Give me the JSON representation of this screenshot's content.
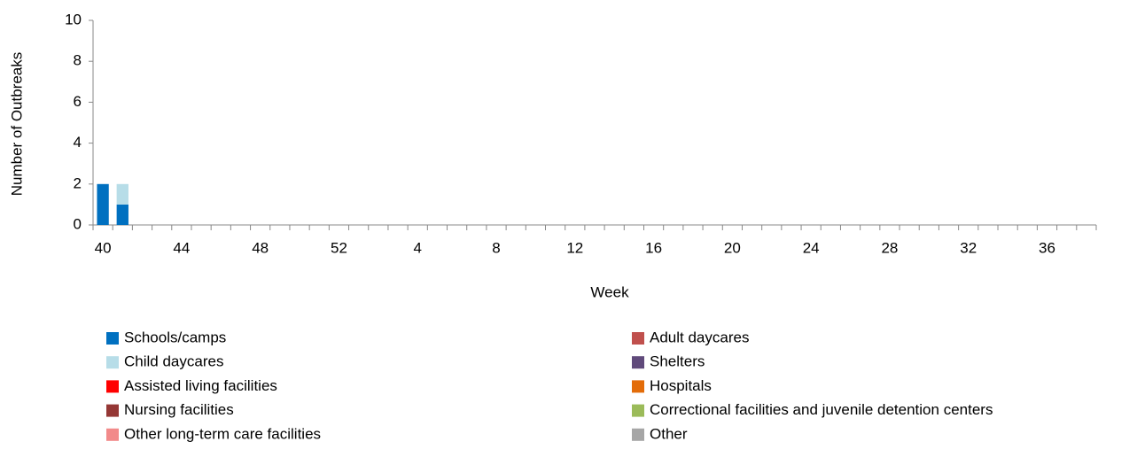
{
  "chart_data": {
    "type": "stacked_bar",
    "x_label": "Week",
    "y_label": "Number of Outbreaks",
    "categories": [
      "40",
      null,
      null,
      null,
      "44",
      null,
      null,
      null,
      "48",
      null,
      null,
      null,
      "52",
      null,
      null,
      null,
      "4",
      null,
      null,
      null,
      "8",
      null,
      null,
      null,
      "12",
      null,
      null,
      null,
      "16",
      null,
      null,
      null,
      "20",
      null,
      null,
      null,
      "24",
      null,
      null,
      null,
      "28",
      null,
      null,
      null,
      "32",
      null,
      null,
      null,
      "36",
      null,
      null
    ],
    "ylim": [
      0,
      10
    ],
    "yticks": [
      0,
      2,
      4,
      6,
      8,
      10
    ],
    "grid": false,
    "series": [
      {
        "name": "Schools/camps",
        "color": "#0070c0",
        "values": [
          2,
          1,
          0,
          0,
          0,
          0,
          0,
          0,
          0,
          0,
          0,
          0,
          0,
          0,
          0,
          0,
          0,
          0,
          0,
          0,
          0,
          0,
          0,
          0,
          0,
          0,
          0,
          0,
          0,
          0,
          0,
          0,
          0,
          0,
          0,
          0,
          0,
          0,
          0,
          0,
          0,
          0,
          0,
          0,
          0,
          0,
          0,
          0,
          0,
          0,
          0
        ]
      },
      {
        "name": "Child daycares",
        "color": "#b7dde8",
        "values": [
          0,
          1,
          0,
          0,
          0,
          0,
          0,
          0,
          0,
          0,
          0,
          0,
          0,
          0,
          0,
          0,
          0,
          0,
          0,
          0,
          0,
          0,
          0,
          0,
          0,
          0,
          0,
          0,
          0,
          0,
          0,
          0,
          0,
          0,
          0,
          0,
          0,
          0,
          0,
          0,
          0,
          0,
          0,
          0,
          0,
          0,
          0,
          0,
          0,
          0,
          0
        ]
      },
      {
        "name": "Assisted living facilities",
        "color": "#ff0000",
        "values": [
          0,
          0,
          0,
          0,
          0,
          0,
          0,
          0,
          0,
          0,
          0,
          0,
          0,
          0,
          0,
          0,
          0,
          0,
          0,
          0,
          0,
          0,
          0,
          0,
          0,
          0,
          0,
          0,
          0,
          0,
          0,
          0,
          0,
          0,
          0,
          0,
          0,
          0,
          0,
          0,
          0,
          0,
          0,
          0,
          0,
          0,
          0,
          0,
          0,
          0,
          0
        ]
      },
      {
        "name": "Nursing facilities",
        "color": "#953735",
        "values": [
          0,
          0,
          0,
          0,
          0,
          0,
          0,
          0,
          0,
          0,
          0,
          0,
          0,
          0,
          0,
          0,
          0,
          0,
          0,
          0,
          0,
          0,
          0,
          0,
          0,
          0,
          0,
          0,
          0,
          0,
          0,
          0,
          0,
          0,
          0,
          0,
          0,
          0,
          0,
          0,
          0,
          0,
          0,
          0,
          0,
          0,
          0,
          0,
          0,
          0,
          0
        ]
      },
      {
        "name": "Other long-term care facilities",
        "color": "#f28a8a",
        "values": [
          0,
          0,
          0,
          0,
          0,
          0,
          0,
          0,
          0,
          0,
          0,
          0,
          0,
          0,
          0,
          0,
          0,
          0,
          0,
          0,
          0,
          0,
          0,
          0,
          0,
          0,
          0,
          0,
          0,
          0,
          0,
          0,
          0,
          0,
          0,
          0,
          0,
          0,
          0,
          0,
          0,
          0,
          0,
          0,
          0,
          0,
          0,
          0,
          0,
          0,
          0
        ]
      },
      {
        "name": "Adult daycares",
        "color": "#c0504d",
        "values": [
          0,
          0,
          0,
          0,
          0,
          0,
          0,
          0,
          0,
          0,
          0,
          0,
          0,
          0,
          0,
          0,
          0,
          0,
          0,
          0,
          0,
          0,
          0,
          0,
          0,
          0,
          0,
          0,
          0,
          0,
          0,
          0,
          0,
          0,
          0,
          0,
          0,
          0,
          0,
          0,
          0,
          0,
          0,
          0,
          0,
          0,
          0,
          0,
          0,
          0,
          0
        ]
      },
      {
        "name": "Shelters",
        "color": "#604a7b",
        "values": [
          0,
          0,
          0,
          0,
          0,
          0,
          0,
          0,
          0,
          0,
          0,
          0,
          0,
          0,
          0,
          0,
          0,
          0,
          0,
          0,
          0,
          0,
          0,
          0,
          0,
          0,
          0,
          0,
          0,
          0,
          0,
          0,
          0,
          0,
          0,
          0,
          0,
          0,
          0,
          0,
          0,
          0,
          0,
          0,
          0,
          0,
          0,
          0,
          0,
          0,
          0
        ]
      },
      {
        "name": "Hospitals",
        "color": "#e36c09",
        "values": [
          0,
          0,
          0,
          0,
          0,
          0,
          0,
          0,
          0,
          0,
          0,
          0,
          0,
          0,
          0,
          0,
          0,
          0,
          0,
          0,
          0,
          0,
          0,
          0,
          0,
          0,
          0,
          0,
          0,
          0,
          0,
          0,
          0,
          0,
          0,
          0,
          0,
          0,
          0,
          0,
          0,
          0,
          0,
          0,
          0,
          0,
          0,
          0,
          0,
          0,
          0
        ]
      },
      {
        "name": "Correctional facilities and juvenile detention centers",
        "color": "#9bbb59",
        "values": [
          0,
          0,
          0,
          0,
          0,
          0,
          0,
          0,
          0,
          0,
          0,
          0,
          0,
          0,
          0,
          0,
          0,
          0,
          0,
          0,
          0,
          0,
          0,
          0,
          0,
          0,
          0,
          0,
          0,
          0,
          0,
          0,
          0,
          0,
          0,
          0,
          0,
          0,
          0,
          0,
          0,
          0,
          0,
          0,
          0,
          0,
          0,
          0,
          0,
          0,
          0
        ]
      },
      {
        "name": "Other",
        "color": "#a6a6a6",
        "values": [
          0,
          0,
          0,
          0,
          0,
          0,
          0,
          0,
          0,
          0,
          0,
          0,
          0,
          0,
          0,
          0,
          0,
          0,
          0,
          0,
          0,
          0,
          0,
          0,
          0,
          0,
          0,
          0,
          0,
          0,
          0,
          0,
          0,
          0,
          0,
          0,
          0,
          0,
          0,
          0,
          0,
          0,
          0,
          0,
          0,
          0,
          0,
          0,
          0,
          0,
          0
        ]
      }
    ]
  }
}
